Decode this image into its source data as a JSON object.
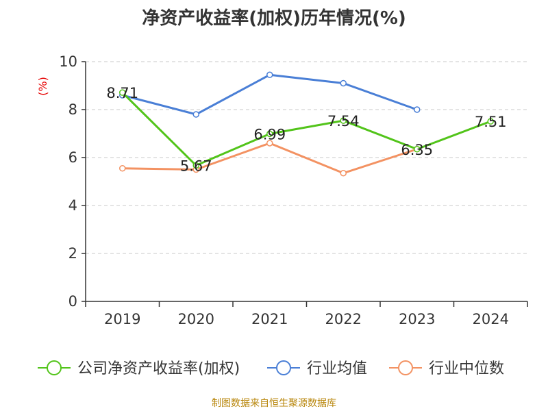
{
  "title": "净资产收益率(加权)历年情况(%)",
  "source": "制图数据来自恒生聚源数据库",
  "colors": {
    "company": "#52c41a",
    "industry_avg": "#4a7fd6",
    "industry_median": "#f39262",
    "axis": "#333333",
    "grid": "#c8c8c8",
    "unit": "#e60000"
  },
  "chart_data": {
    "type": "line",
    "title": "净资产收益率(加权)历年情况(%)",
    "ylabel": "(%)",
    "xlabel": "",
    "ylim": [
      0,
      10
    ],
    "yticks": [
      0,
      2,
      4,
      6,
      8,
      10
    ],
    "categories": [
      "2019",
      "2020",
      "2021",
      "2022",
      "2023",
      "2024"
    ],
    "grid": true,
    "legend_position": "bottom",
    "series": [
      {
        "name": "公司净资产收益率(加权)",
        "color_key": "company",
        "values": [
          8.71,
          5.67,
          6.99,
          7.54,
          6.35,
          7.51
        ],
        "labels": [
          "8.71",
          "5.67",
          "6.99",
          "7.54",
          "6.35",
          "7.51"
        ]
      },
      {
        "name": "行业均值",
        "color_key": "industry_avg",
        "values": [
          8.6,
          7.8,
          9.45,
          9.1,
          8.0,
          null
        ]
      },
      {
        "name": "行业中位数",
        "color_key": "industry_median",
        "values": [
          5.55,
          5.5,
          6.6,
          5.35,
          6.35,
          null
        ]
      }
    ]
  }
}
